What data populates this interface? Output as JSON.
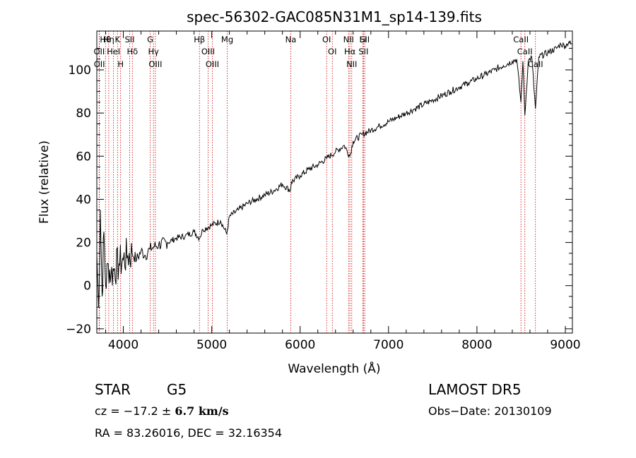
{
  "chart_data": {
    "type": "line",
    "title": "spec-56302-GAC085N31M1_sp14-139.fits",
    "xlabel": "Wavelength (Å)",
    "ylabel": "Flux (relative)",
    "xlim": [
      3700,
      9080
    ],
    "ylim": [
      -22,
      118
    ],
    "xticks": [
      4000,
      5000,
      6000,
      7000,
      8000,
      9000
    ],
    "yticks": [
      -20,
      0,
      20,
      40,
      60,
      80,
      100
    ],
    "grid": false,
    "series": [
      {
        "x": [
          3700,
          3720,
          3740,
          3760,
          3780,
          3800,
          3830,
          3860,
          3900,
          3950,
          4000,
          4050,
          4100,
          4150,
          4200,
          4250,
          4300,
          4350,
          4400,
          4500,
          4600,
          4700,
          4800,
          4860,
          4900,
          5000,
          5100,
          5170,
          5200,
          5300,
          5400,
          5500,
          5600,
          5700,
          5800,
          5890,
          5900,
          6000,
          6100,
          6200,
          6300,
          6400,
          6500,
          6563,
          6600,
          6700,
          6800,
          6900,
          7000,
          7100,
          7200,
          7300,
          7400,
          7500,
          7600,
          7700,
          7800,
          7900,
          8000,
          8100,
          8200,
          8300,
          8400,
          8450,
          8498,
          8520,
          8542,
          8580,
          8620,
          8662,
          8700,
          8800,
          8900,
          8950,
          9000,
          9020,
          9040,
          9060,
          9080
        ],
        "y": [
          15,
          -10,
          35,
          -5,
          25,
          0,
          10,
          5,
          8,
          10,
          12,
          14,
          15,
          12,
          16,
          14,
          17,
          18,
          19,
          20,
          22,
          23,
          25,
          22,
          26,
          28,
          30,
          24,
          32,
          35,
          38,
          40,
          42,
          44,
          47,
          44,
          48,
          51,
          54,
          56,
          59,
          62,
          65,
          60,
          67,
          70,
          72,
          74,
          76,
          78,
          80,
          82,
          84,
          86,
          88,
          90,
          92,
          94,
          96,
          98,
          100,
          102,
          104,
          105,
          85,
          104,
          79,
          104,
          106,
          82,
          106,
          108,
          110,
          112,
          111,
          112,
          113,
          112,
          112
        ]
      }
    ],
    "lines": [
      {
        "name": "Hθ",
        "x": 3798
      },
      {
        "name": "OII",
        "x": 3727
      },
      {
        "name": "OII",
        "x": 3729
      },
      {
        "name": "Hη",
        "x": 3835
      },
      {
        "name": "HeI",
        "x": 3889
      },
      {
        "name": "K",
        "x": 3934
      },
      {
        "name": "H",
        "x": 3969
      },
      {
        "name": "SII",
        "x": 4072
      },
      {
        "name": "Hδ",
        "x": 4102
      },
      {
        "name": "G",
        "x": 4304
      },
      {
        "name": "Hγ",
        "x": 4341
      },
      {
        "name": "OIII",
        "x": 4363
      },
      {
        "name": "Hβ",
        "x": 4861
      },
      {
        "name": "OIII",
        "x": 4959
      },
      {
        "name": "OIII",
        "x": 5007
      },
      {
        "name": "Mg",
        "x": 5175
      },
      {
        "name": "Na",
        "x": 5894
      },
      {
        "name": "OI",
        "x": 6300
      },
      {
        "name": "OI",
        "x": 6364
      },
      {
        "name": "NII",
        "x": 6548
      },
      {
        "name": "Hα",
        "x": 6563
      },
      {
        "name": "NII",
        "x": 6584
      },
      {
        "name": "Li",
        "x": 6708
      },
      {
        "name": "SII",
        "x": 6717
      },
      {
        "name": "SII",
        "x": 6731
      },
      {
        "name": "CaII",
        "x": 8498
      },
      {
        "name": "CaII",
        "x": 8542
      },
      {
        "name": "CaII",
        "x": 8662
      }
    ]
  },
  "info": {
    "class": "STAR",
    "subclass": "G5",
    "survey": "LAMOST DR5",
    "cz_prefix": "cz = ",
    "cz_value": "−17.2",
    "cz_pm": "±",
    "cz_err": "6.7 km/s",
    "obs_date": "Obs−Date: 20130109",
    "radec": "RA =  83.26016, DEC =  32.16354"
  },
  "colors": {
    "line_marker": "#cc0000",
    "spectrum": "#000000"
  }
}
